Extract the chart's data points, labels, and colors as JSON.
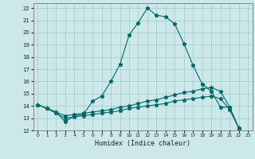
{
  "xlabel": "Humidex (Indice chaleur)",
  "xlim": [
    -0.5,
    23.5
  ],
  "ylim": [
    12,
    22.4
  ],
  "xticks": [
    0,
    1,
    2,
    3,
    4,
    5,
    6,
    7,
    8,
    9,
    10,
    11,
    12,
    13,
    14,
    15,
    16,
    17,
    18,
    19,
    20,
    21,
    22,
    23
  ],
  "yticks": [
    12,
    13,
    14,
    15,
    16,
    17,
    18,
    19,
    20,
    21,
    22
  ],
  "background_color": "#cce8e8",
  "line_color": "#006868",
  "series1_x": [
    0,
    1,
    2,
    3,
    4,
    5,
    6,
    7,
    8,
    9,
    10,
    11,
    12,
    13,
    14,
    15,
    16,
    17,
    18,
    19,
    20,
    21,
    22
  ],
  "series1_y": [
    14.1,
    13.8,
    13.5,
    12.7,
    13.2,
    13.3,
    14.4,
    14.8,
    16.0,
    17.4,
    19.8,
    20.8,
    22.0,
    21.4,
    21.3,
    20.7,
    19.1,
    17.3,
    15.8,
    15.2,
    13.9,
    13.9,
    12.2
  ],
  "series2_x": [
    0,
    1,
    2,
    3,
    4,
    5,
    6,
    7,
    8,
    9,
    10,
    11,
    12,
    13,
    14,
    15,
    16,
    17,
    18,
    19,
    20,
    21,
    22
  ],
  "series2_y": [
    14.1,
    13.8,
    13.5,
    13.2,
    13.3,
    13.4,
    13.5,
    13.6,
    13.7,
    13.9,
    14.0,
    14.2,
    14.4,
    14.5,
    14.7,
    14.9,
    15.1,
    15.2,
    15.4,
    15.5,
    15.2,
    13.9,
    12.2
  ],
  "series3_x": [
    0,
    1,
    2,
    3,
    4,
    5,
    6,
    7,
    8,
    9,
    10,
    11,
    12,
    13,
    14,
    15,
    16,
    17,
    18,
    19,
    20,
    21,
    22
  ],
  "series3_y": [
    14.1,
    13.8,
    13.4,
    13.0,
    13.1,
    13.2,
    13.3,
    13.4,
    13.5,
    13.6,
    13.8,
    13.9,
    14.0,
    14.1,
    14.2,
    14.4,
    14.5,
    14.6,
    14.7,
    14.8,
    14.6,
    13.7,
    12.2
  ]
}
